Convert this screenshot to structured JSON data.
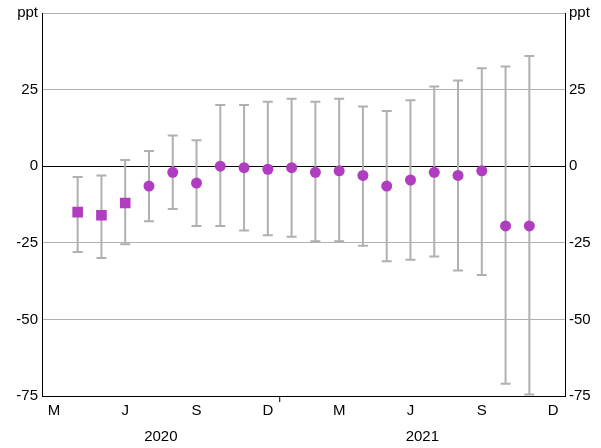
{
  "chart_data": {
    "type": "scatter",
    "categories": [
      "M",
      null,
      null,
      "J",
      null,
      null,
      "S",
      null,
      null,
      "D",
      null,
      null,
      "M",
      null,
      null,
      "J",
      null,
      null,
      "S",
      null,
      null,
      "D"
    ],
    "x_groups": [
      {
        "label": "2020",
        "count": 10
      },
      {
        "label": "2021",
        "count": 12
      }
    ],
    "series": [
      {
        "color": "#b03cc0",
        "marker": "square",
        "values": [
          null,
          -15,
          -16,
          -12,
          null,
          null,
          null,
          null,
          null,
          null,
          null,
          null,
          null,
          null,
          null,
          null,
          null,
          null,
          null,
          null,
          null,
          null
        ],
        "error_low": [
          null,
          -28,
          -30,
          -25.5,
          null,
          null,
          null,
          null,
          null,
          null,
          null,
          null,
          null,
          null,
          null,
          null,
          null,
          null,
          null,
          null,
          null,
          null
        ],
        "error_high": [
          null,
          -3.5,
          -3,
          2,
          null,
          null,
          null,
          null,
          null,
          null,
          null,
          null,
          null,
          null,
          null,
          null,
          null,
          null,
          null,
          null,
          null,
          null
        ]
      },
      {
        "color": "#b03cc0",
        "marker": "circle",
        "values": [
          null,
          null,
          null,
          null,
          -6.5,
          -2,
          -5.5,
          0,
          -0.5,
          -1,
          -0.5,
          -2,
          -1.5,
          -3,
          -6.5,
          -4.5,
          -2,
          -3,
          -1.5,
          -19.5,
          -19.5,
          null
        ],
        "error_low": [
          null,
          null,
          null,
          null,
          -18,
          -14,
          -19.5,
          -19.5,
          -21,
          -22.5,
          -23,
          -24.5,
          -24.5,
          -26,
          -31,
          -30.5,
          -29.5,
          -34,
          -35.5,
          -71,
          -74.5,
          null
        ],
        "error_high": [
          null,
          null,
          null,
          null,
          5,
          10,
          8.5,
          20,
          20,
          21,
          22,
          21,
          22,
          19.5,
          18,
          21.5,
          26,
          28,
          32,
          32.5,
          36,
          null
        ]
      }
    ],
    "ylim": [
      -75,
      50
    ],
    "yticks": [
      -75,
      -50,
      -25,
      0,
      25,
      {
        "value": 50,
        "label": "ppt"
      }
    ],
    "y2lim": [
      -75,
      50
    ],
    "y2ticks": [
      -75,
      -50,
      -25,
      0,
      25,
      {
        "value": 50,
        "label": "ppt"
      }
    ],
    "grid": true
  }
}
